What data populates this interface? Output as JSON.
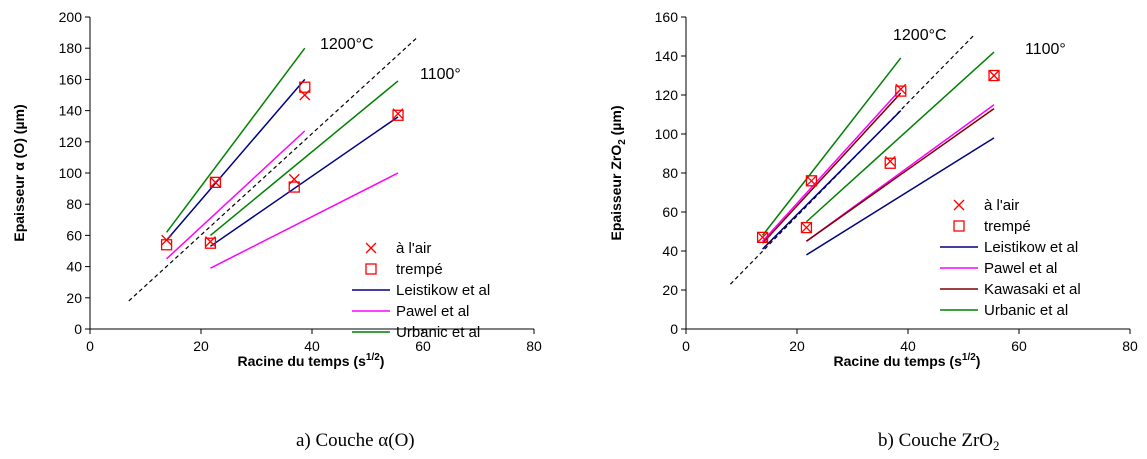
{
  "chart_data": [
    {
      "type": "scatter",
      "caption_prefix": "a) Couche ",
      "caption_main": "α(O)",
      "caption_sub": "",
      "xlabel": "Racine du temps (s",
      "xlabel_sup": "1/2",
      "xlabel_suffix": ")",
      "ylabel": "Epaisseur α (O) (µm)",
      "ylabel_sub": "",
      "ylabel_suffix": "",
      "xlim": [
        0,
        80
      ],
      "ylim": [
        0,
        200
      ],
      "xticks": [
        0,
        20,
        40,
        60,
        80
      ],
      "yticks": [
        0,
        20,
        40,
        60,
        80,
        100,
        120,
        140,
        160,
        180,
        200
      ],
      "grid": false,
      "legend_position": "right",
      "annotations": [
        {
          "text": "1200°C",
          "x": 42.5,
          "y": 182
        },
        {
          "text": "1100°",
          "x": 59,
          "y": 161
        }
      ],
      "dashed_line": {
        "x": [
          7,
          59
        ],
        "y": [
          18,
          187
        ]
      },
      "points": [
        {
          "series": "à l'air",
          "x": 13.8,
          "y": 57
        },
        {
          "series": "à l'air",
          "x": 22.6,
          "y": 94
        },
        {
          "series": "à l'air",
          "x": 38.7,
          "y": 150
        },
        {
          "series": "à l'air",
          "x": 21.7,
          "y": 56
        },
        {
          "series": "à l'air",
          "x": 36.8,
          "y": 96
        },
        {
          "series": "à l'air",
          "x": 55.5,
          "y": 138
        },
        {
          "series": "trempé",
          "x": 13.8,
          "y": 54
        },
        {
          "series": "trempé",
          "x": 22.6,
          "y": 94
        },
        {
          "series": "trempé",
          "x": 38.7,
          "y": 155
        },
        {
          "series": "trempé",
          "x": 21.7,
          "y": 55
        },
        {
          "series": "trempé",
          "x": 36.8,
          "y": 91
        },
        {
          "series": "trempé",
          "x": 55.5,
          "y": 137
        }
      ],
      "lines": [
        {
          "series": "Leistikow et al",
          "x": [
            13.8,
            38.7
          ],
          "y": [
            57,
            160
          ]
        },
        {
          "series": "Leistikow et al",
          "x": [
            21.7,
            55.5
          ],
          "y": [
            53,
            136
          ]
        },
        {
          "series": "Pawel et al",
          "x": [
            13.8,
            38.7
          ],
          "y": [
            45,
            127
          ]
        },
        {
          "series": "Pawel et al",
          "x": [
            21.7,
            55.5
          ],
          "y": [
            39,
            100
          ]
        },
        {
          "series": "Urbanic et al",
          "x": [
            13.8,
            38.7
          ],
          "y": [
            62,
            180
          ]
        },
        {
          "series": "Urbanic et al",
          "x": [
            21.7,
            55.5
          ],
          "y": [
            60,
            159
          ]
        }
      ],
      "legend": [
        {
          "name": "à l'air",
          "kind": "x",
          "color": "#ff0000"
        },
        {
          "name": "trempé",
          "kind": "square",
          "color": "#ff0000"
        },
        {
          "name": "Leistikow et al",
          "kind": "line",
          "color": "#000080"
        },
        {
          "name": "Pawel et al",
          "kind": "line",
          "color": "#ff00ff"
        },
        {
          "name": "Urbanic et al",
          "kind": "line",
          "color": "#008000"
        }
      ]
    },
    {
      "type": "scatter",
      "caption_prefix": "b) Couche ",
      "caption_main": "ZrO",
      "caption_sub": "2",
      "xlabel": "Racine du temps (s",
      "xlabel_sup": "1/2",
      "xlabel_suffix": ")",
      "ylabel": "Epaisseur ZrO",
      "ylabel_sub": "2",
      "ylabel_suffix": " (µm)",
      "xlim": [
        0,
        80
      ],
      "ylim": [
        0,
        160
      ],
      "xticks": [
        0,
        20,
        40,
        60,
        80
      ],
      "yticks": [
        0,
        20,
        40,
        60,
        80,
        100,
        120,
        140,
        160
      ],
      "grid": false,
      "legend_position": "right",
      "annotations": [
        {
          "text": "1200°C",
          "x": 37.5,
          "y": 149
        },
        {
          "text": "1100°",
          "x": 61,
          "y": 138
        }
      ],
      "dashed_line": {
        "x": [
          8,
          52
        ],
        "y": [
          23,
          151
        ]
      },
      "points": [
        {
          "series": "à l'air",
          "x": 13.8,
          "y": 47
        },
        {
          "series": "à l'air",
          "x": 22.6,
          "y": 76
        },
        {
          "series": "à l'air",
          "x": 38.7,
          "y": 123
        },
        {
          "series": "à l'air",
          "x": 21.7,
          "y": 52
        },
        {
          "series": "à l'air",
          "x": 36.8,
          "y": 86
        },
        {
          "series": "à l'air",
          "x": 55.5,
          "y": 130
        },
        {
          "series": "trempé",
          "x": 13.8,
          "y": 47
        },
        {
          "series": "trempé",
          "x": 22.6,
          "y": 76
        },
        {
          "series": "trempé",
          "x": 38.7,
          "y": 122
        },
        {
          "series": "trempé",
          "x": 21.7,
          "y": 52
        },
        {
          "series": "trempé",
          "x": 36.8,
          "y": 85
        },
        {
          "series": "trempé",
          "x": 55.5,
          "y": 130
        }
      ],
      "lines": [
        {
          "series": "Leistikow et al",
          "x": [
            13.8,
            38.7
          ],
          "y": [
            41,
            112
          ]
        },
        {
          "series": "Leistikow et al",
          "x": [
            21.7,
            55.5
          ],
          "y": [
            38,
            98
          ]
        },
        {
          "series": "Pawel et al",
          "x": [
            13.8,
            38.7
          ],
          "y": [
            45,
            123
          ]
        },
        {
          "series": "Pawel et al",
          "x": [
            21.7,
            55.5
          ],
          "y": [
            45,
            115
          ]
        },
        {
          "series": "Kawasaki et al",
          "x": [
            13.8,
            38.7
          ],
          "y": [
            44,
            121
          ]
        },
        {
          "series": "Kawasaki et al",
          "x": [
            21.7,
            55.5
          ],
          "y": [
            45,
            113
          ]
        },
        {
          "series": "Urbanic et al",
          "x": [
            13.8,
            38.7
          ],
          "y": [
            48,
            139
          ]
        },
        {
          "series": "Urbanic et al",
          "x": [
            21.7,
            55.5
          ],
          "y": [
            55,
            142
          ]
        }
      ],
      "legend": [
        {
          "name": "à l'air",
          "kind": "x",
          "color": "#ff0000"
        },
        {
          "name": "trempé",
          "kind": "square",
          "color": "#ff0000"
        },
        {
          "name": "Leistikow et al",
          "kind": "line",
          "color": "#000080"
        },
        {
          "name": "Pawel et al",
          "kind": "line",
          "color": "#ff00ff"
        },
        {
          "name": "Kawasaki et al",
          "kind": "line",
          "color": "#800000"
        },
        {
          "name": "Urbanic et al",
          "kind": "line",
          "color": "#008000"
        }
      ]
    }
  ]
}
